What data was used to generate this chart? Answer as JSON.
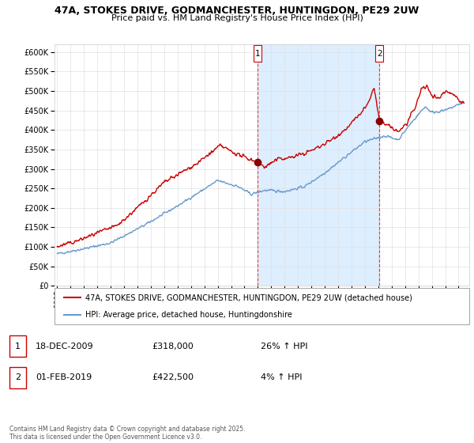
{
  "title1": "47A, STOKES DRIVE, GODMANCHESTER, HUNTINGDON, PE29 2UW",
  "title2": "Price paid vs. HM Land Registry's House Price Index (HPI)",
  "legend_label1": "47A, STOKES DRIVE, GODMANCHESTER, HUNTINGDON, PE29 2UW (detached house)",
  "legend_label2": "HPI: Average price, detached house, Huntingdonshire",
  "marker1_date": "18-DEC-2009",
  "marker1_price": "£318,000",
  "marker1_hpi": "26% ↑ HPI",
  "marker2_date": "01-FEB-2019",
  "marker2_price": "£422,500",
  "marker2_hpi": "4% ↑ HPI",
  "footnote": "Contains HM Land Registry data © Crown copyright and database right 2025.\nThis data is licensed under the Open Government Licence v3.0.",
  "line1_color": "#cc0000",
  "line2_color": "#6699cc",
  "fill_color": "#ddeeff",
  "marker1_x": 2009.97,
  "marker2_x": 2019.08,
  "marker1_y": 318000,
  "marker2_y": 422500,
  "ylim": [
    0,
    620000
  ],
  "xlim_start": 1994.8,
  "xlim_end": 2025.8,
  "yticks": [
    0,
    50000,
    100000,
    150000,
    200000,
    250000,
    300000,
    350000,
    400000,
    450000,
    500000,
    550000,
    600000
  ],
  "xticks": [
    1995,
    1996,
    1997,
    1998,
    1999,
    2000,
    2001,
    2002,
    2003,
    2004,
    2005,
    2006,
    2007,
    2008,
    2009,
    2010,
    2011,
    2012,
    2013,
    2014,
    2015,
    2016,
    2017,
    2018,
    2019,
    2020,
    2021,
    2022,
    2023,
    2024,
    2025
  ],
  "background_color": "#ffffff",
  "grid_color": "#e0e0e0"
}
